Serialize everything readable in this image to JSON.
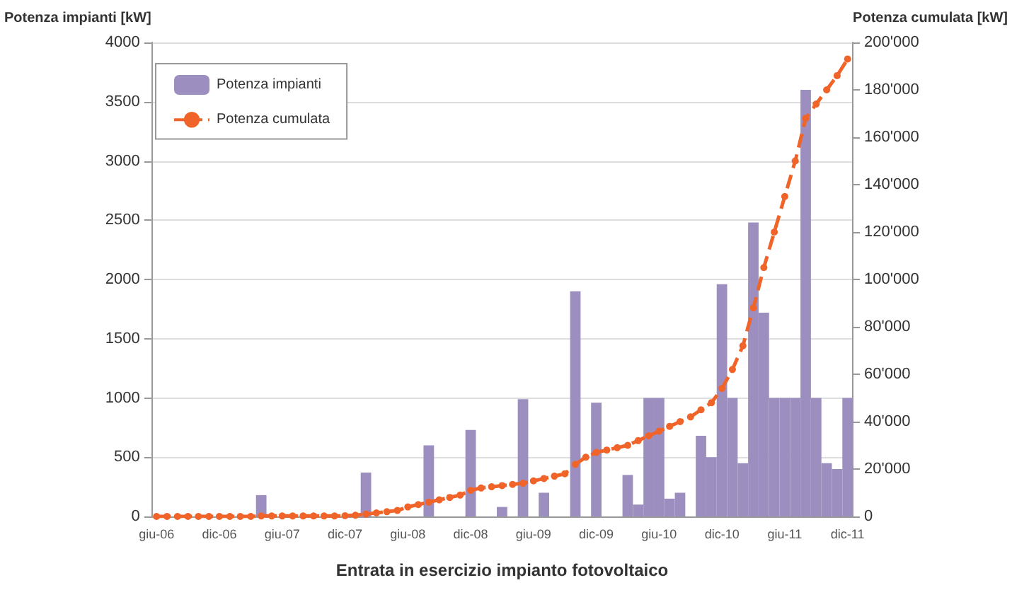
{
  "chart_data": {
    "type": "bar",
    "xlabel": "Entrata in esercizio impianto fotovoltaico",
    "ylabel": "Potenza impianti [kW]",
    "y2label": "Potenza cumulata [kW]",
    "categories": [
      "giu-06",
      null,
      null,
      null,
      null,
      null,
      "dic-06",
      null,
      null,
      null,
      null,
      null,
      "giu-07",
      null,
      null,
      null,
      null,
      null,
      "dic-07",
      null,
      null,
      null,
      null,
      null,
      "giu-08",
      null,
      null,
      null,
      null,
      null,
      "dic-08",
      null,
      null,
      null,
      null,
      null,
      "giu-09",
      null,
      null,
      null,
      null,
      null,
      "dic-09",
      null,
      null,
      null,
      null,
      null,
      "giu-10",
      null,
      null,
      null,
      null,
      null,
      "dic-10",
      null,
      null,
      null,
      null,
      null,
      "giu-11",
      null,
      null,
      null,
      null,
      null,
      "dic-11"
    ],
    "series": [
      {
        "name": "Potenza impianti",
        "color": "#9c8fc0",
        "values": [
          0,
          0,
          0,
          0,
          0,
          0,
          0,
          0,
          0,
          0,
          180,
          0,
          0,
          0,
          0,
          0,
          0,
          0,
          0,
          0,
          370,
          0,
          0,
          0,
          0,
          0,
          600,
          0,
          0,
          0,
          730,
          0,
          0,
          80,
          0,
          990,
          0,
          200,
          0,
          0,
          1900,
          0,
          960,
          0,
          0,
          350,
          100,
          1000,
          1000,
          150,
          200,
          0,
          680,
          500,
          1960,
          1000,
          450,
          2480,
          1720,
          1000,
          1000,
          1000,
          3600,
          1000,
          450,
          400,
          1000
        ]
      },
      {
        "name": "Potenza cumulata",
        "type": "line",
        "axis": "y2",
        "color": "#f0642a",
        "marker": "circle",
        "line_style": "dashed",
        "values": [
          0,
          0,
          0,
          0,
          0,
          0,
          0,
          0,
          0,
          0,
          200,
          200,
          200,
          200,
          200,
          200,
          200,
          200,
          300,
          500,
          1000,
          1500,
          2000,
          2500,
          4000,
          5000,
          6000,
          7000,
          8000,
          9000,
          11000,
          12000,
          12500,
          13000,
          13500,
          14000,
          15000,
          16000,
          17000,
          18000,
          22000,
          25000,
          27000,
          28000,
          29000,
          30000,
          32000,
          34000,
          36000,
          38000,
          40000,
          42000,
          45000,
          48000,
          54000,
          62000,
          72000,
          88000,
          105000,
          120000,
          135000,
          150000,
          168000,
          174000,
          180000,
          186000,
          193000
        ]
      }
    ],
    "ylim": [
      0,
      4000
    ],
    "yticks": [
      0,
      500,
      1000,
      1500,
      2000,
      2500,
      3000,
      3500,
      4000
    ],
    "y2lim": [
      0,
      200000
    ],
    "y2ticks": [
      {
        "value": 0,
        "label": "0"
      },
      {
        "value": 20000,
        "label": "20'000"
      },
      {
        "value": 40000,
        "label": "40'000"
      },
      {
        "value": 60000,
        "label": "60'000"
      },
      {
        "value": 80000,
        "label": "80'000"
      },
      {
        "value": 100000,
        "label": "100'000"
      },
      {
        "value": 120000,
        "label": "120'000"
      },
      {
        "value": 140000,
        "label": "140'000"
      },
      {
        "value": 160000,
        "label": "160'000"
      },
      {
        "value": 180000,
        "label": "180'000"
      },
      {
        "value": 200000,
        "label": "200'000"
      }
    ],
    "grid": "y",
    "legend": "top left"
  }
}
